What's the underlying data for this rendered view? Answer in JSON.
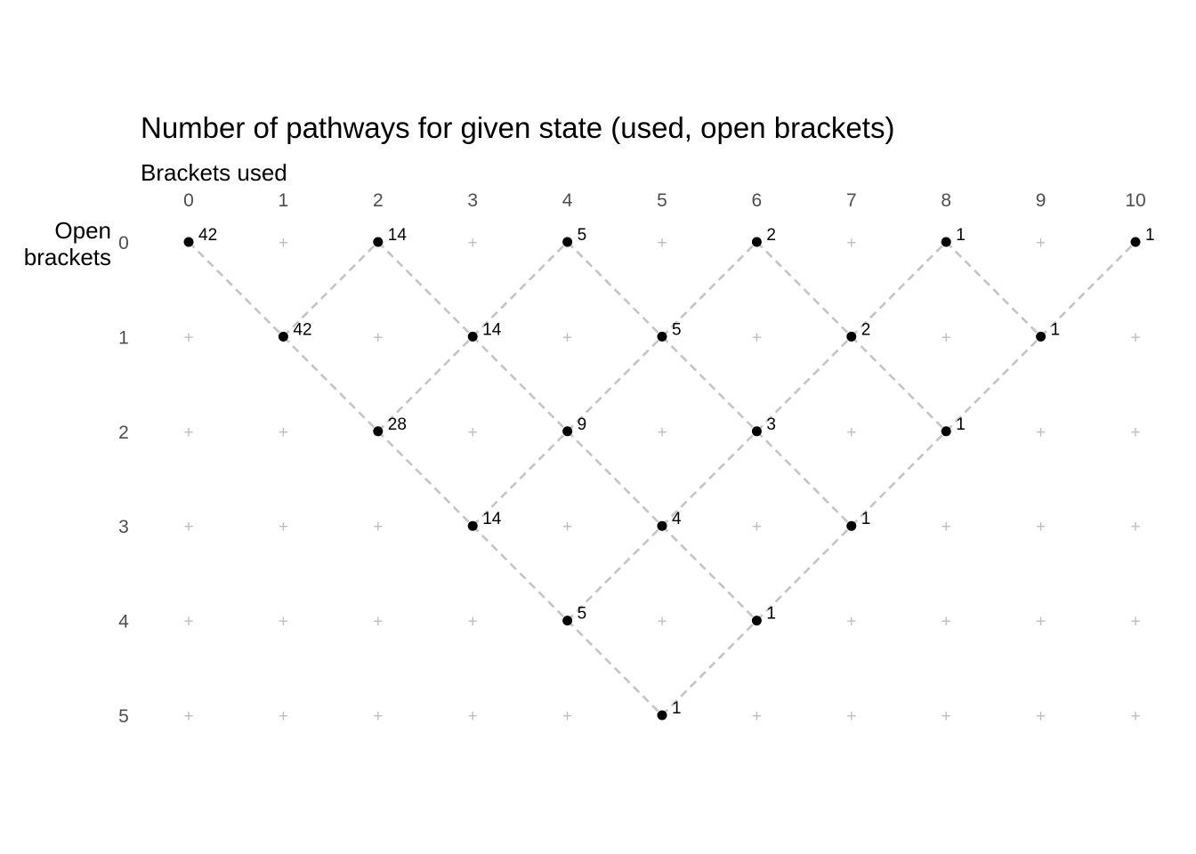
{
  "chart_data": {
    "type": "scatter",
    "title": "Number of pathways for given state (used, open brackets)",
    "xlabel": "Brackets used",
    "ylabel": "Open\nbrackets",
    "x_axis_position": "top",
    "y_axis_reversed": true,
    "x_ticks": [
      "0",
      "1",
      "2",
      "3",
      "4",
      "5",
      "6",
      "7",
      "8",
      "9",
      "10"
    ],
    "y_ticks": [
      "0",
      "1",
      "2",
      "3",
      "4",
      "5"
    ],
    "xlim": [
      0,
      10
    ],
    "ylim": [
      0,
      5
    ],
    "grid": "plus markers at every (x, y)",
    "point_color": "#000000",
    "line_color": "#c4c4c4",
    "grid_color": "#bdbdbd",
    "points": [
      {
        "x": 0,
        "y": 0,
        "label": "42"
      },
      {
        "x": 1,
        "y": 1,
        "label": "42"
      },
      {
        "x": 2,
        "y": 0,
        "label": "14"
      },
      {
        "x": 2,
        "y": 2,
        "label": "28"
      },
      {
        "x": 3,
        "y": 1,
        "label": "14"
      },
      {
        "x": 3,
        "y": 3,
        "label": "14"
      },
      {
        "x": 4,
        "y": 0,
        "label": "5"
      },
      {
        "x": 4,
        "y": 2,
        "label": "9"
      },
      {
        "x": 4,
        "y": 4,
        "label": "5"
      },
      {
        "x": 5,
        "y": 1,
        "label": "5"
      },
      {
        "x": 5,
        "y": 3,
        "label": "4"
      },
      {
        "x": 5,
        "y": 5,
        "label": "1"
      },
      {
        "x": 6,
        "y": 0,
        "label": "2"
      },
      {
        "x": 6,
        "y": 2,
        "label": "3"
      },
      {
        "x": 6,
        "y": 4,
        "label": "1"
      },
      {
        "x": 7,
        "y": 1,
        "label": "2"
      },
      {
        "x": 7,
        "y": 3,
        "label": "1"
      },
      {
        "x": 8,
        "y": 0,
        "label": "1"
      },
      {
        "x": 8,
        "y": 2,
        "label": "1"
      },
      {
        "x": 9,
        "y": 1,
        "label": "1"
      },
      {
        "x": 10,
        "y": 0,
        "label": "1"
      }
    ],
    "edges": [
      [
        [
          0,
          0
        ],
        [
          1,
          1
        ]
      ],
      [
        [
          1,
          1
        ],
        [
          2,
          0
        ]
      ],
      [
        [
          1,
          1
        ],
        [
          2,
          2
        ]
      ],
      [
        [
          2,
          0
        ],
        [
          3,
          1
        ]
      ],
      [
        [
          2,
          2
        ],
        [
          3,
          1
        ]
      ],
      [
        [
          2,
          2
        ],
        [
          3,
          3
        ]
      ],
      [
        [
          3,
          1
        ],
        [
          4,
          0
        ]
      ],
      [
        [
          3,
          1
        ],
        [
          4,
          2
        ]
      ],
      [
        [
          3,
          3
        ],
        [
          4,
          2
        ]
      ],
      [
        [
          3,
          3
        ],
        [
          4,
          4
        ]
      ],
      [
        [
          4,
          0
        ],
        [
          5,
          1
        ]
      ],
      [
        [
          4,
          2
        ],
        [
          5,
          1
        ]
      ],
      [
        [
          4,
          2
        ],
        [
          5,
          3
        ]
      ],
      [
        [
          4,
          4
        ],
        [
          5,
          3
        ]
      ],
      [
        [
          4,
          4
        ],
        [
          5,
          5
        ]
      ],
      [
        [
          5,
          1
        ],
        [
          6,
          0
        ]
      ],
      [
        [
          5,
          1
        ],
        [
          6,
          2
        ]
      ],
      [
        [
          5,
          3
        ],
        [
          6,
          2
        ]
      ],
      [
        [
          5,
          3
        ],
        [
          6,
          4
        ]
      ],
      [
        [
          5,
          5
        ],
        [
          6,
          4
        ]
      ],
      [
        [
          6,
          0
        ],
        [
          7,
          1
        ]
      ],
      [
        [
          6,
          2
        ],
        [
          7,
          1
        ]
      ],
      [
        [
          6,
          2
        ],
        [
          7,
          3
        ]
      ],
      [
        [
          6,
          4
        ],
        [
          7,
          3
        ]
      ],
      [
        [
          7,
          1
        ],
        [
          8,
          0
        ]
      ],
      [
        [
          7,
          1
        ],
        [
          8,
          2
        ]
      ],
      [
        [
          7,
          3
        ],
        [
          8,
          2
        ]
      ],
      [
        [
          8,
          0
        ],
        [
          9,
          1
        ]
      ],
      [
        [
          8,
          2
        ],
        [
          9,
          1
        ]
      ],
      [
        [
          9,
          1
        ],
        [
          10,
          0
        ]
      ]
    ]
  }
}
